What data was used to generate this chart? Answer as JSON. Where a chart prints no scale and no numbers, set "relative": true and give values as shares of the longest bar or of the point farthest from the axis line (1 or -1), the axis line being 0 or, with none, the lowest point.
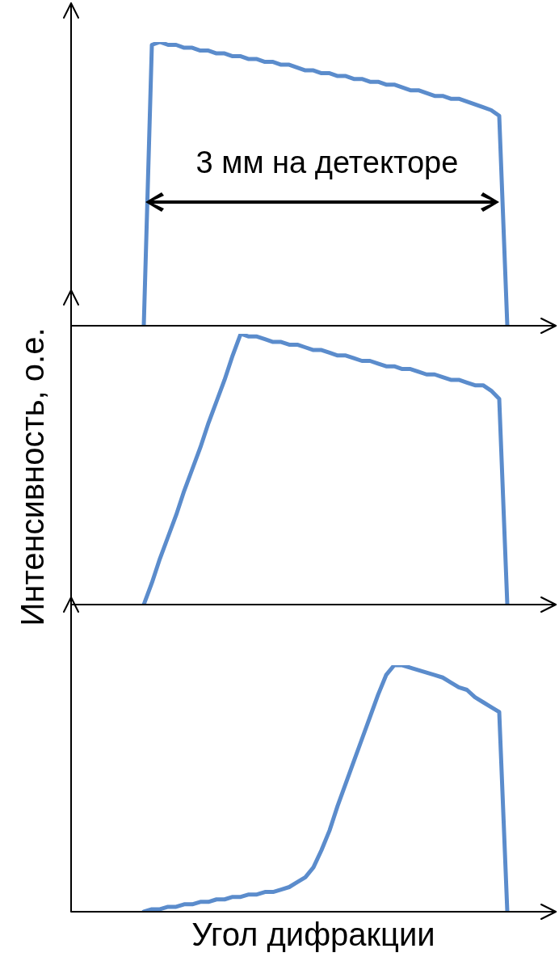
{
  "chart_data": [
    {
      "type": "line",
      "relative": true,
      "line_style": "solid",
      "annotations": [
        "3 мм на детекторе"
      ],
      "categories": [
        null,
        null,
        null,
        null,
        null,
        null,
        null,
        null,
        null,
        null,
        null,
        null,
        null,
        null,
        null,
        null,
        null,
        null,
        null,
        null,
        null,
        null,
        null,
        null,
        null,
        null,
        null,
        null,
        null,
        null,
        null,
        null,
        null,
        null,
        null,
        null,
        null,
        null,
        null,
        null,
        null,
        null,
        null,
        null,
        null,
        null,
        null,
        null,
        null,
        null,
        null,
        null,
        null,
        null,
        null,
        null,
        null,
        null,
        null,
        null,
        null
      ],
      "series": [
        {
          "color": "#5b8ccc",
          "values": [
            null,
            null,
            null,
            null,
            null,
            null,
            null,
            null,
            null,
            0,
            0.99,
            1.0,
            0.99,
            0.99,
            0.98,
            0.98,
            0.97,
            0.97,
            0.96,
            0.96,
            0.95,
            0.95,
            0.94,
            0.94,
            0.93,
            0.93,
            0.92,
            0.92,
            0.91,
            0.9,
            0.9,
            0.89,
            0.89,
            0.88,
            0.88,
            0.87,
            0.87,
            0.86,
            0.86,
            0.85,
            0.85,
            0.84,
            0.83,
            0.83,
            0.82,
            0.81,
            0.81,
            0.8,
            0.8,
            0.79,
            0.78,
            0.77,
            0.76,
            0.74,
            0,
            null,
            null,
            null,
            null,
            null,
            null
          ]
        }
      ]
    },
    {
      "type": "line",
      "relative": true,
      "line_style": "solid",
      "ylabel": "Интенсивность, о.е.",
      "categories": [
        null,
        null,
        null,
        null,
        null,
        null,
        null,
        null,
        null,
        null,
        null,
        null,
        null,
        null,
        null,
        null,
        null,
        null,
        null,
        null,
        null,
        null,
        null,
        null,
        null,
        null,
        null,
        null,
        null,
        null,
        null,
        null,
        null,
        null,
        null,
        null,
        null,
        null,
        null,
        null,
        null,
        null,
        null,
        null,
        null,
        null,
        null,
        null,
        null,
        null,
        null,
        null,
        null,
        null,
        null,
        null,
        null,
        null,
        null,
        null,
        null
      ],
      "series": [
        {
          "color": "#5b8ccc",
          "values": [
            null,
            null,
            null,
            null,
            null,
            null,
            null,
            null,
            null,
            0,
            0.08,
            0.17,
            0.25,
            0.33,
            0.42,
            0.5,
            0.58,
            0.67,
            0.75,
            0.83,
            0.92,
            1.0,
            0.99,
            0.99,
            0.98,
            0.97,
            0.97,
            0.96,
            0.96,
            0.95,
            0.94,
            0.94,
            0.93,
            0.92,
            0.92,
            0.91,
            0.9,
            0.9,
            0.89,
            0.88,
            0.88,
            0.87,
            0.87,
            0.86,
            0.85,
            0.85,
            0.84,
            0.83,
            0.83,
            0.82,
            0.81,
            0.81,
            0.79,
            0.76,
            0,
            null,
            null,
            null,
            null,
            null,
            null
          ]
        }
      ]
    },
    {
      "type": "line",
      "relative": true,
      "line_style": "solid",
      "xlabel": "Угол дифракции",
      "categories": [
        null,
        null,
        null,
        null,
        null,
        null,
        null,
        null,
        null,
        null,
        null,
        null,
        null,
        null,
        null,
        null,
        null,
        null,
        null,
        null,
        null,
        null,
        null,
        null,
        null,
        null,
        null,
        null,
        null,
        null,
        null,
        null,
        null,
        null,
        null,
        null,
        null,
        null,
        null,
        null,
        null,
        null,
        null,
        null,
        null,
        null,
        null,
        null,
        null,
        null,
        null,
        null,
        null,
        null,
        null,
        null,
        null,
        null,
        null,
        null,
        null
      ],
      "series": [
        {
          "color": "#5b8ccc",
          "values": [
            null,
            null,
            null,
            null,
            null,
            null,
            null,
            null,
            null,
            0,
            0.01,
            0.01,
            0.02,
            0.02,
            0.03,
            0.03,
            0.04,
            0.04,
            0.05,
            0.05,
            0.06,
            0.06,
            0.07,
            0.07,
            0.08,
            0.08,
            0.09,
            0.1,
            0.12,
            0.14,
            0.18,
            0.25,
            0.33,
            0.43,
            0.52,
            0.61,
            0.7,
            0.79,
            0.88,
            0.96,
            1.0,
            1.0,
            0.99,
            0.98,
            0.97,
            0.96,
            0.95,
            0.93,
            0.91,
            0.9,
            0.87,
            0.85,
            0.83,
            0.81,
            0,
            null,
            null,
            null,
            null,
            null,
            null
          ]
        }
      ]
    }
  ]
}
